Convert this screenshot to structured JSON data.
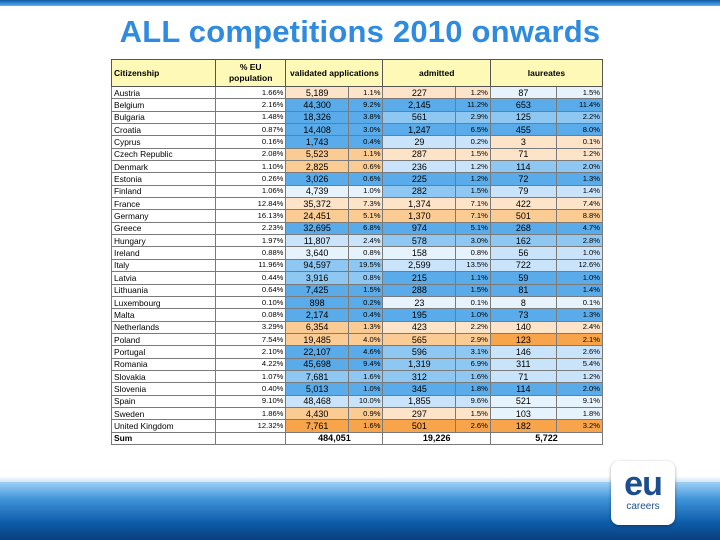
{
  "slide": {
    "title": "ALL competitions 2010 onwards",
    "headers": {
      "citizenship": "Citizenship",
      "eu_population": "% EU population",
      "validated": "validated applications",
      "admitted": "admitted",
      "laureates": "laureates"
    },
    "rows": [
      {
        "country": "Austria",
        "eu_pct": "1.66%",
        "validated": "5,189",
        "validated_pct": "1.1%",
        "admitted": "227",
        "admitted_pct": "1.2%",
        "laureates": "87",
        "laureates_pct": "1.5%"
      },
      {
        "country": "Belgium",
        "eu_pct": "2.16%",
        "validated": "44,300",
        "validated_pct": "9.2%",
        "admitted": "2,145",
        "admitted_pct": "11.2%",
        "laureates": "653",
        "laureates_pct": "11.4%"
      },
      {
        "country": "Bulgaria",
        "eu_pct": "1.48%",
        "validated": "18,326",
        "validated_pct": "3.8%",
        "admitted": "561",
        "admitted_pct": "2.9%",
        "laureates": "125",
        "laureates_pct": "2.2%"
      },
      {
        "country": "Croatia",
        "eu_pct": "0.87%",
        "validated": "14,408",
        "validated_pct": "3.0%",
        "admitted": "1,247",
        "admitted_pct": "6.5%",
        "laureates": "455",
        "laureates_pct": "8.0%"
      },
      {
        "country": "Cyprus",
        "eu_pct": "0.16%",
        "validated": "1,743",
        "validated_pct": "0.4%",
        "admitted": "29",
        "admitted_pct": "0.2%",
        "laureates": "3",
        "laureates_pct": "0.1%"
      },
      {
        "country": "Czech Republic",
        "eu_pct": "2.08%",
        "validated": "5,523",
        "validated_pct": "1.1%",
        "admitted": "287",
        "admitted_pct": "1.5%",
        "laureates": "71",
        "laureates_pct": "1.2%"
      },
      {
        "country": "Denmark",
        "eu_pct": "1.10%",
        "validated": "2,825",
        "validated_pct": "0.6%",
        "admitted": "236",
        "admitted_pct": "1.2%",
        "laureates": "114",
        "laureates_pct": "2.0%"
      },
      {
        "country": "Estonia",
        "eu_pct": "0.26%",
        "validated": "3,026",
        "validated_pct": "0.6%",
        "admitted": "225",
        "admitted_pct": "1.2%",
        "laureates": "72",
        "laureates_pct": "1.3%"
      },
      {
        "country": "Finland",
        "eu_pct": "1.06%",
        "validated": "4,739",
        "validated_pct": "1.0%",
        "admitted": "282",
        "admitted_pct": "1.5%",
        "laureates": "79",
        "laureates_pct": "1.4%"
      },
      {
        "country": "France",
        "eu_pct": "12.84%",
        "validated": "35,372",
        "validated_pct": "7.3%",
        "admitted": "1,374",
        "admitted_pct": "7.1%",
        "laureates": "422",
        "laureates_pct": "7.4%"
      },
      {
        "country": "Germany",
        "eu_pct": "16.13%",
        "validated": "24,451",
        "validated_pct": "5.1%",
        "admitted": "1,370",
        "admitted_pct": "7.1%",
        "laureates": "501",
        "laureates_pct": "8.8%"
      },
      {
        "country": "Greece",
        "eu_pct": "2.23%",
        "validated": "32,695",
        "validated_pct": "6.8%",
        "admitted": "974",
        "admitted_pct": "5.1%",
        "laureates": "268",
        "laureates_pct": "4.7%"
      },
      {
        "country": "Hungary",
        "eu_pct": "1.97%",
        "validated": "11,807",
        "validated_pct": "2.4%",
        "admitted": "578",
        "admitted_pct": "3.0%",
        "laureates": "162",
        "laureates_pct": "2.8%"
      },
      {
        "country": "Ireland",
        "eu_pct": "0.88%",
        "validated": "3,640",
        "validated_pct": "0.8%",
        "admitted": "158",
        "admitted_pct": "0.8%",
        "laureates": "56",
        "laureates_pct": "1.0%"
      },
      {
        "country": "Italy",
        "eu_pct": "11.96%",
        "validated": "94,597",
        "validated_pct": "19.5%",
        "admitted": "2,599",
        "admitted_pct": "13.5%",
        "laureates": "722",
        "laureates_pct": "12.6%"
      },
      {
        "country": "Latvia",
        "eu_pct": "0.44%",
        "validated": "3,916",
        "validated_pct": "0.8%",
        "admitted": "215",
        "admitted_pct": "1.1%",
        "laureates": "59",
        "laureates_pct": "1.0%"
      },
      {
        "country": "Lithuania",
        "eu_pct": "0.64%",
        "validated": "7,425",
        "validated_pct": "1.5%",
        "admitted": "288",
        "admitted_pct": "1.5%",
        "laureates": "81",
        "laureates_pct": "1.4%"
      },
      {
        "country": "Luxembourg",
        "eu_pct": "0.10%",
        "validated": "898",
        "validated_pct": "0.2%",
        "admitted": "23",
        "admitted_pct": "0.1%",
        "laureates": "8",
        "laureates_pct": "0.1%"
      },
      {
        "country": "Malta",
        "eu_pct": "0.08%",
        "validated": "2,174",
        "validated_pct": "0.4%",
        "admitted": "195",
        "admitted_pct": "1.0%",
        "laureates": "73",
        "laureates_pct": "1.3%"
      },
      {
        "country": "Netherlands",
        "eu_pct": "3.29%",
        "validated": "6,354",
        "validated_pct": "1.3%",
        "admitted": "423",
        "admitted_pct": "2.2%",
        "laureates": "140",
        "laureates_pct": "2.4%"
      },
      {
        "country": "Poland",
        "eu_pct": "7.54%",
        "validated": "19,485",
        "validated_pct": "4.0%",
        "admitted": "565",
        "admitted_pct": "2.9%",
        "laureates": "123",
        "laureates_pct": "2.1%"
      },
      {
        "country": "Portugal",
        "eu_pct": "2.10%",
        "validated": "22,107",
        "validated_pct": "4.6%",
        "admitted": "596",
        "admitted_pct": "3.1%",
        "laureates": "146",
        "laureates_pct": "2.6%"
      },
      {
        "country": "Romania",
        "eu_pct": "4.22%",
        "validated": "45,698",
        "validated_pct": "9.4%",
        "admitted": "1,319",
        "admitted_pct": "6.9%",
        "laureates": "311",
        "laureates_pct": "5.4%"
      },
      {
        "country": "Slovakia",
        "eu_pct": "1.07%",
        "validated": "7,681",
        "validated_pct": "1.6%",
        "admitted": "312",
        "admitted_pct": "1.6%",
        "laureates": "71",
        "laureates_pct": "1.2%"
      },
      {
        "country": "Slovenia",
        "eu_pct": "0.40%",
        "validated": "5,013",
        "validated_pct": "1.0%",
        "admitted": "345",
        "admitted_pct": "1.8%",
        "laureates": "114",
        "laureates_pct": "2.0%"
      },
      {
        "country": "Spain",
        "eu_pct": "9.10%",
        "validated": "48,468",
        "validated_pct": "10.0%",
        "admitted": "1,855",
        "admitted_pct": "9.6%",
        "laureates": "521",
        "laureates_pct": "9.1%"
      },
      {
        "country": "Sweden",
        "eu_pct": "1.86%",
        "validated": "4,430",
        "validated_pct": "0.9%",
        "admitted": "297",
        "admitted_pct": "1.5%",
        "laureates": "103",
        "laureates_pct": "1.8%"
      },
      {
        "country": "United Kingdom",
        "eu_pct": "12.32%",
        "validated": "7,761",
        "validated_pct": "1.6%",
        "admitted": "501",
        "admitted_pct": "2.6%",
        "laureates": "182",
        "laureates_pct": "3.2%"
      }
    ],
    "sum": {
      "label": "Sum",
      "validated": "484,051",
      "admitted": "19,226",
      "laureates": "5,722"
    },
    "colors": {
      "title": "#2e8be0",
      "header_bg": "#fef9b6",
      "strong_blue": "#5aabea",
      "mid_blue": "#8ec8f2",
      "light_blue": "#c9e4fa",
      "pale_blue": "#e6f2fc",
      "pale_peach": "#fde4c9",
      "peach": "#fbcb94",
      "orange": "#f7a44a"
    },
    "logo": {
      "line1": "eu",
      "line2": "careers"
    }
  }
}
